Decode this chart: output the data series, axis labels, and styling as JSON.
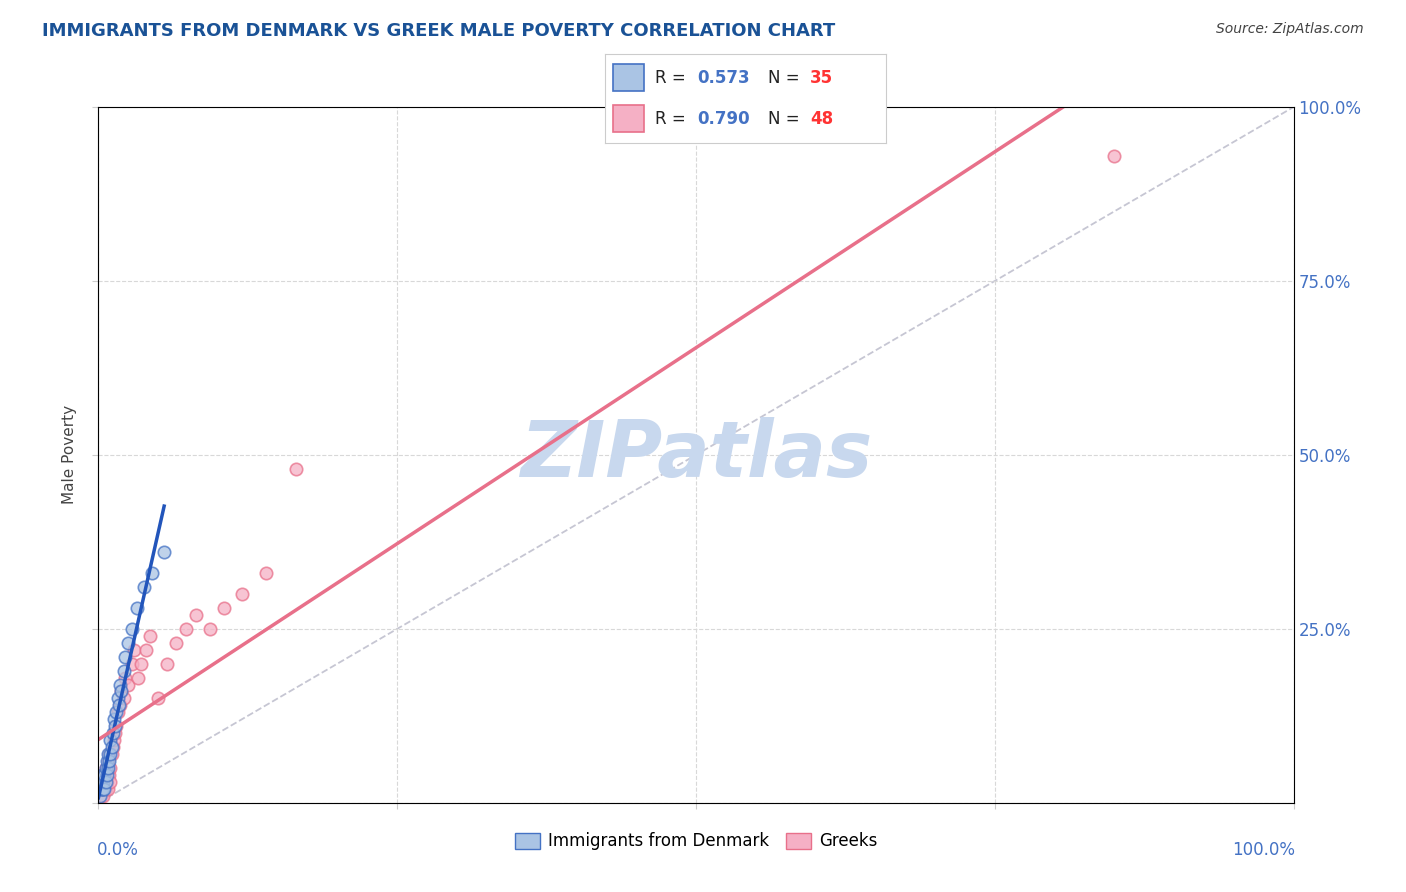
{
  "title": "IMMIGRANTS FROM DENMARK VS GREEK MALE POVERTY CORRELATION CHART",
  "source": "Source: ZipAtlas.com",
  "ylabel": "Male Poverty",
  "legend_labels": [
    "Immigrants from Denmark",
    "Greeks"
  ],
  "r_denmark": 0.573,
  "n_denmark": 35,
  "r_greeks": 0.79,
  "n_greeks": 48,
  "denmark_color": "#aac4e4",
  "greeks_color": "#f5b0c5",
  "denmark_edge_color": "#4472c4",
  "greeks_edge_color": "#e8708a",
  "denmark_line_color": "#2255bb",
  "greeks_line_color": "#e8708a",
  "diagonal_color": "#b8b8c8",
  "watermark": "ZIPatlas",
  "watermark_color": "#c8d8ee",
  "denmark_scatter_x": [
    0.001,
    0.002,
    0.002,
    0.003,
    0.003,
    0.004,
    0.004,
    0.005,
    0.005,
    0.006,
    0.006,
    0.007,
    0.007,
    0.008,
    0.008,
    0.009,
    0.01,
    0.01,
    0.011,
    0.012,
    0.013,
    0.014,
    0.015,
    0.016,
    0.017,
    0.018,
    0.019,
    0.021,
    0.022,
    0.025,
    0.028,
    0.032,
    0.038,
    0.045,
    0.055
  ],
  "denmark_scatter_y": [
    0.01,
    0.02,
    0.03,
    0.02,
    0.04,
    0.02,
    0.03,
    0.02,
    0.04,
    0.03,
    0.05,
    0.04,
    0.06,
    0.05,
    0.07,
    0.06,
    0.07,
    0.09,
    0.08,
    0.1,
    0.12,
    0.11,
    0.13,
    0.15,
    0.14,
    0.17,
    0.16,
    0.19,
    0.21,
    0.23,
    0.25,
    0.28,
    0.31,
    0.33,
    0.36
  ],
  "greeks_scatter_x": [
    0.001,
    0.001,
    0.002,
    0.002,
    0.003,
    0.003,
    0.004,
    0.004,
    0.005,
    0.005,
    0.006,
    0.006,
    0.007,
    0.007,
    0.008,
    0.008,
    0.009,
    0.009,
    0.01,
    0.01,
    0.011,
    0.012,
    0.013,
    0.014,
    0.015,
    0.016,
    0.018,
    0.019,
    0.021,
    0.022,
    0.025,
    0.028,
    0.03,
    0.033,
    0.036,
    0.04,
    0.043,
    0.05,
    0.057,
    0.065,
    0.073,
    0.082,
    0.093,
    0.105,
    0.12,
    0.14,
    0.165,
    0.85
  ],
  "greeks_scatter_y": [
    0.01,
    0.02,
    0.01,
    0.03,
    0.02,
    0.04,
    0.01,
    0.03,
    0.02,
    0.04,
    0.02,
    0.05,
    0.03,
    0.05,
    0.02,
    0.06,
    0.04,
    0.07,
    0.03,
    0.05,
    0.07,
    0.08,
    0.09,
    0.1,
    0.11,
    0.13,
    0.14,
    0.16,
    0.15,
    0.18,
    0.17,
    0.2,
    0.22,
    0.18,
    0.2,
    0.22,
    0.24,
    0.15,
    0.2,
    0.23,
    0.25,
    0.27,
    0.25,
    0.28,
    0.3,
    0.33,
    0.48,
    0.93
  ],
  "xlim": [
    0.0,
    1.0
  ],
  "ylim": [
    0.0,
    1.0
  ],
  "background_color": "#ffffff",
  "grid_color": "#d8d8d8",
  "title_color": "#1a5296",
  "axis_label_color": "#4472c4",
  "text_color": "#444444",
  "legend_r_color": "#4472c4",
  "legend_n_color": "#ff3333",
  "marker_size": 80
}
